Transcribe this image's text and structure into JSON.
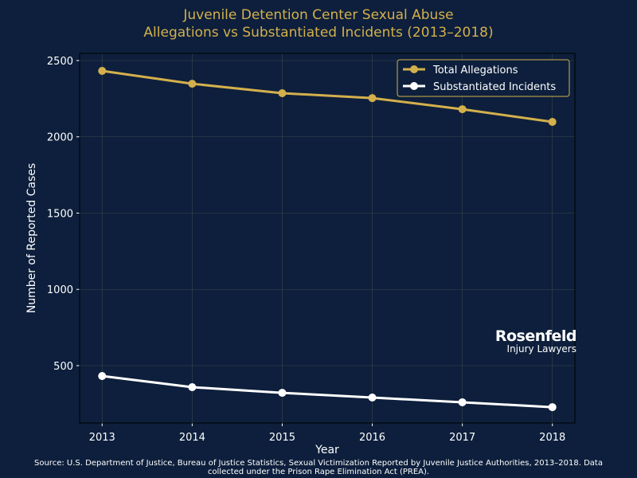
{
  "chart_data": {
    "type": "line",
    "title": "Juvenile Detention Center Sexual Abuse\nAllegations vs Substantiated Incidents (2013–2018)",
    "title_lines": [
      "Juvenile Detention Center Sexual Abuse",
      "Allegations vs Substantiated Incidents (2013–2018)"
    ],
    "xlabel": "Year",
    "ylabel": "Number of Reported Cases",
    "x": [
      2013,
      2014,
      2015,
      2016,
      2017,
      2018
    ],
    "xticks": [
      "2013",
      "2014",
      "2015",
      "2016",
      "2017",
      "2018"
    ],
    "yticks": [
      "500",
      "1000",
      "1500",
      "2000",
      "2500"
    ],
    "ylim": [
      124,
      2547
    ],
    "xlim": [
      2012.75,
      2018.25
    ],
    "grid": true,
    "legend_placement": "top-right",
    "series": [
      {
        "name": "Total Allegations",
        "color": "#d4b04c",
        "values": [
          2432,
          2348,
          2286,
          2254,
          2181,
          2098
        ]
      },
      {
        "name": "Substantiated Incidents",
        "color": "#ffffff",
        "values": [
          432,
          359,
          322,
          291,
          260,
          228
        ]
      }
    ],
    "source": "Source: U.S. Department of Justice, Bureau of Justice Statistics, Sexual Victimization Reported by Juvenile Justice Authorities, 2013–2018. Data collected under the Prison Rape Elimination Act (PREA).",
    "source_lines": [
      "Source: U.S. Department of Justice, Bureau of Justice Statistics, Sexual Victimization Reported by Juvenile Justice Authorities, 2013–2018. Data",
      "collected under the Prison Rape Elimination Act (PREA)."
    ]
  },
  "logo": {
    "line1": "Rosenfeld",
    "line2": "Injury Lawyers"
  },
  "colors": {
    "background": "#0d1f3c",
    "accent": "#d4b04c"
  }
}
